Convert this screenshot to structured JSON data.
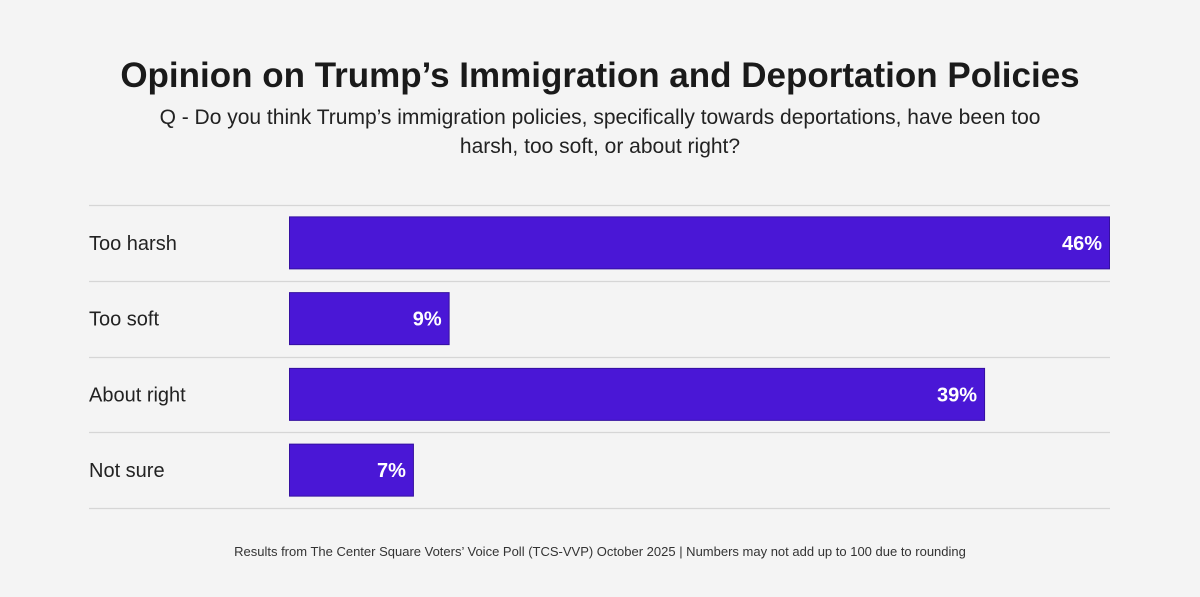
{
  "chart_data": {
    "type": "bar",
    "orientation": "horizontal",
    "title": "Opinion on Trump’s Immigration and Deportation Policies",
    "subtitle": "Q - Do you think Trump’s immigration policies, specifically towards deportations, have been too harsh, too soft, or about right?",
    "categories": [
      "Too harsh",
      "Too soft",
      "About right",
      "Not sure"
    ],
    "values": [
      46,
      9,
      39,
      7
    ],
    "value_labels": [
      "46%",
      "9%",
      "39%",
      "7%"
    ],
    "xlim": [
      0,
      46
    ],
    "grid": false,
    "bar_color": "#4a17d6",
    "footer": "Results from The Center Square Voters’ Voice Poll (TCS-VVP) October 2025 | Numbers may not add up to 100 due to rounding"
  }
}
